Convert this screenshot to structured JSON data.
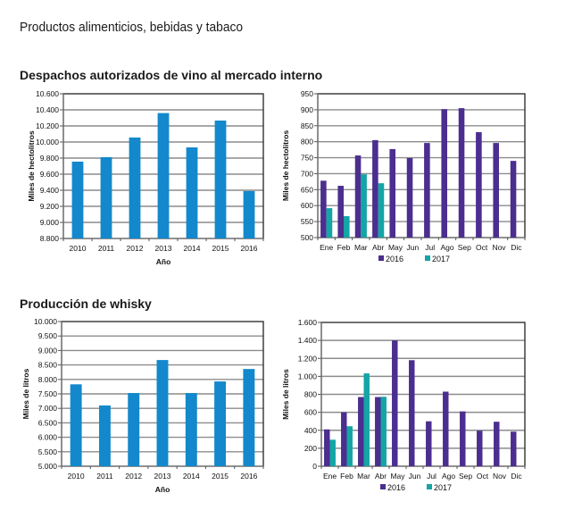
{
  "page": {
    "title": "Productos alimenticios, bebidas y tabaco",
    "sections": [
      {
        "title": "Despachos autorizados de vino al mercado interno"
      },
      {
        "title": "Producción de whisky"
      }
    ]
  },
  "colors": {
    "single": "#1388cc",
    "s2016": "#4b2e8f",
    "s2017": "#14a5a6",
    "grid": "#8c8c8c"
  },
  "chart_data": [
    {
      "id": "vino-anual",
      "type": "bar",
      "title": "Despachos autorizados de vino al mercado interno",
      "xlabel": "Año",
      "ylabel": "Miles de hectolitros",
      "categories": [
        "2010",
        "2011",
        "2012",
        "2013",
        "2014",
        "2015",
        "2016"
      ],
      "values": [
        9756,
        9811,
        10056,
        10360,
        9933,
        10267,
        9390
      ],
      "ylim": [
        8800,
        10600
      ],
      "yticks": [
        8800,
        9000,
        9200,
        9400,
        9600,
        9800,
        10000,
        10200,
        10400,
        10600
      ],
      "ytick_labels": [
        "8.800",
        "9.000",
        "9.200",
        "9.400",
        "9.600",
        "9.800",
        "10.000",
        "10.200",
        "10.400",
        "10.600"
      ],
      "grid": true
    },
    {
      "id": "vino-mensual",
      "type": "bar",
      "xlabel": "",
      "ylabel": "Miles de hectolitros",
      "categories": [
        "Ene",
        "Feb",
        "Mar",
        "Abr",
        "May",
        "Jun",
        "Jul",
        "Ago",
        "Sep",
        "Oct",
        "Nov",
        "Dic"
      ],
      "series": [
        {
          "name": "2016",
          "values": [
            678,
            662,
            757,
            805,
            777,
            749,
            796,
            902,
            905,
            830,
            796,
            740
          ]
        },
        {
          "name": "2017",
          "values": [
            592,
            567,
            698,
            670,
            null,
            null,
            null,
            null,
            null,
            null,
            null,
            null
          ]
        }
      ],
      "ylim": [
        500,
        950
      ],
      "yticks": [
        500,
        550,
        600,
        650,
        700,
        750,
        800,
        850,
        900,
        950
      ],
      "ytick_labels": [
        "500",
        "550",
        "600",
        "650",
        "700",
        "750",
        "800",
        "850",
        "900",
        "950"
      ],
      "legend": "bottom",
      "grid": true
    },
    {
      "id": "whisky-anual",
      "type": "bar",
      "title": "Producción de whisky",
      "xlabel": "Año",
      "ylabel": "Miles de litros",
      "categories": [
        "2010",
        "2011",
        "2012",
        "2013",
        "2014",
        "2015",
        "2016"
      ],
      "values": [
        7830,
        7100,
        7530,
        8670,
        7530,
        7930,
        8360
      ],
      "ylim": [
        5000,
        10000
      ],
      "yticks": [
        5000,
        5500,
        6000,
        6500,
        7000,
        7500,
        8000,
        8500,
        9000,
        9500,
        10000
      ],
      "ytick_labels": [
        "5.000",
        "5.500",
        "6.000",
        "6.500",
        "7.000",
        "7.500",
        "8.000",
        "8.500",
        "9.000",
        "9.500",
        "10.000"
      ],
      "grid": true
    },
    {
      "id": "whisky-mensual",
      "type": "bar",
      "xlabel": "",
      "ylabel": "Miles de litros",
      "categories": [
        "Ene",
        "Feb",
        "Mar",
        "Abr",
        "May",
        "Jun",
        "Jul",
        "Ago",
        "Sep",
        "Oct",
        "Nov",
        "Dic"
      ],
      "series": [
        {
          "name": "2016",
          "values": [
            410,
            600,
            770,
            770,
            1400,
            1180,
            500,
            830,
            610,
            395,
            495,
            385
          ]
        },
        {
          "name": "2017",
          "values": [
            295,
            445,
            1033,
            773,
            null,
            null,
            null,
            null,
            null,
            null,
            null,
            null
          ]
        }
      ],
      "ylim": [
        0,
        1600
      ],
      "yticks": [
        0,
        200,
        400,
        600,
        800,
        1000,
        1200,
        1400,
        1600
      ],
      "ytick_labels": [
        "0",
        "200",
        "400",
        "600",
        "800",
        "1.000",
        "1.200",
        "1.400",
        "1.600"
      ],
      "legend": "bottom",
      "grid": true
    }
  ]
}
